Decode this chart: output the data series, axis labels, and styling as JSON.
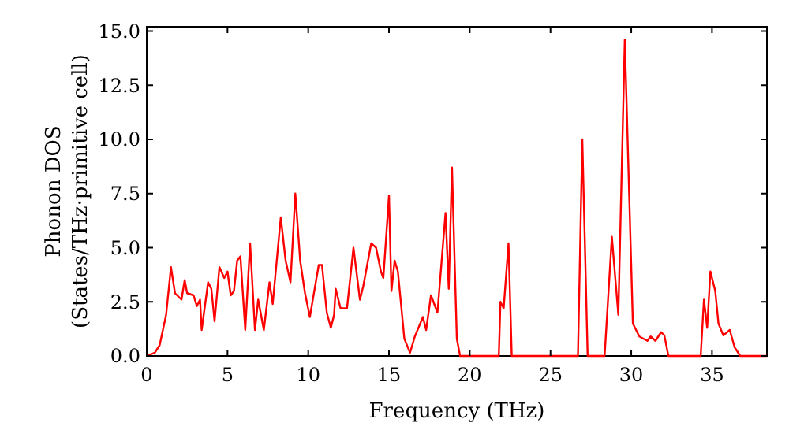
{
  "chart_data": {
    "type": "line",
    "xlabel": "Frequency (THz)",
    "ylabel": "Phonon DOS\n(States/THz·primitive cell)",
    "xlim": [
      0,
      38.4
    ],
    "ylim": [
      0,
      15.2
    ],
    "xticks": [
      0,
      5,
      10,
      15,
      20,
      25,
      30,
      35
    ],
    "yticks": [
      {
        "value": 0,
        "label": "0.0"
      },
      {
        "value": 2.5,
        "label": "2.5"
      },
      {
        "value": 5,
        "label": "5.0"
      },
      {
        "value": 7.5,
        "label": "7.5"
      },
      {
        "value": 10,
        "label": "10.0"
      },
      {
        "value": 12.5,
        "label": "12.5"
      },
      {
        "value": 15,
        "label": "15.0"
      }
    ],
    "grid": false,
    "line_style": "solid",
    "series": [
      {
        "color": "#ff0000",
        "x": [
          0,
          0.5,
          0.8,
          1.2,
          1.5,
          1.75,
          2.15,
          2.35,
          2.5,
          2.9,
          3.1,
          3.3,
          3.4,
          3.8,
          4.0,
          4.2,
          4.5,
          4.8,
          5.0,
          5.2,
          5.4,
          5.6,
          5.8,
          6.1,
          6.4,
          6.7,
          6.9,
          7.25,
          7.6,
          7.8,
          8.3,
          8.6,
          8.9,
          9.2,
          9.5,
          9.8,
          10.1,
          10.65,
          10.85,
          11.15,
          11.4,
          11.6,
          11.7,
          12.0,
          12.4,
          12.8,
          13.2,
          13.4,
          13.7,
          13.9,
          14.2,
          14.5,
          14.65,
          15.0,
          15.15,
          15.35,
          15.55,
          15.95,
          16.3,
          16.6,
          17.1,
          17.3,
          17.6,
          18.0,
          18.5,
          18.7,
          18.9,
          19.2,
          19.4,
          21.8,
          21.9,
          22.1,
          22.4,
          22.6,
          26.7,
          26.97,
          27.3,
          28.35,
          28.8,
          29.2,
          29.6,
          30.1,
          30.5,
          31.0,
          31.2,
          31.5,
          31.85,
          32.05,
          32.3,
          34.3,
          34.5,
          34.7,
          34.9,
          35.2,
          35.4,
          35.7,
          36.1,
          36.4,
          36.75,
          38.4
        ],
        "values": [
          0,
          0.15,
          0.5,
          1.9,
          4.1,
          2.9,
          2.6,
          3.5,
          2.9,
          2.8,
          2.3,
          2.6,
          1.2,
          3.4,
          3.1,
          1.6,
          4.1,
          3.6,
          3.9,
          2.8,
          3.0,
          4.4,
          4.6,
          1.2,
          5.2,
          1.2,
          2.6,
          1.2,
          3.4,
          2.4,
          6.4,
          4.4,
          3.4,
          7.5,
          4.4,
          2.9,
          1.8,
          4.2,
          4.2,
          2.0,
          1.3,
          1.9,
          3.1,
          2.2,
          2.2,
          5.0,
          2.6,
          3.2,
          4.4,
          5.2,
          5.0,
          3.9,
          3.6,
          7.4,
          3.0,
          4.4,
          3.9,
          0.8,
          0.15,
          0.9,
          1.8,
          1.2,
          2.8,
          2.0,
          6.6,
          3.1,
          8.7,
          0.8,
          0,
          0,
          2.5,
          2.2,
          5.2,
          0,
          0,
          10.0,
          0,
          0,
          5.5,
          1.9,
          14.6,
          1.5,
          0.9,
          0.7,
          0.9,
          0.7,
          1.1,
          0.95,
          0,
          0,
          2.6,
          1.3,
          3.9,
          3.0,
          1.5,
          0.95,
          1.2,
          0.4,
          0,
          0
        ]
      }
    ]
  }
}
